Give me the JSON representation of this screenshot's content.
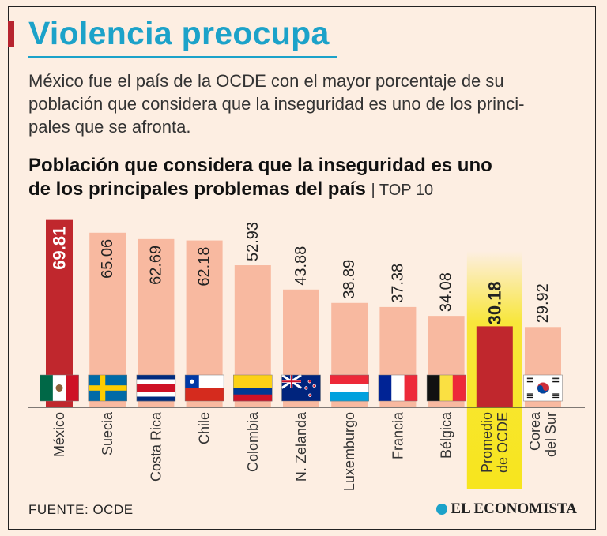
{
  "header": {
    "title": "Violencia preocupa",
    "intro_lines": [
      "México fue el país de la OCDE con el mayor porcentaje de su",
      "población que considera que la inseguridad es uno de los princi-",
      "pales que se afronta."
    ]
  },
  "chart_data": {
    "type": "bar",
    "title_lines": [
      "Población que considera que la inseguridad es uno",
      "de los principales problemas del país"
    ],
    "title_tag": "| TOP 10",
    "categories": [
      "México",
      "Suecia",
      "Costa Rica",
      "Chile",
      "Colombia",
      "N. Zelanda",
      "Luxemburgo",
      "Francia",
      "Bélgica",
      "Promedio de OCDE",
      "Corea del Sur"
    ],
    "category_lines": [
      [
        "México"
      ],
      [
        "Suecia"
      ],
      [
        "Costa Rica"
      ],
      [
        "Chile"
      ],
      [
        "Colombia"
      ],
      [
        "N. Zelanda"
      ],
      [
        "Luxemburgo"
      ],
      [
        "Francia"
      ],
      [
        "Bélgica"
      ],
      [
        "Promedio",
        "de OCDE"
      ],
      [
        "Corea",
        "del Sur"
      ]
    ],
    "values": [
      69.81,
      65.06,
      62.69,
      62.18,
      52.93,
      43.88,
      38.89,
      37.38,
      34.08,
      30.18,
      29.92
    ],
    "value_labels": [
      "69.81",
      "65.06",
      "62.69",
      "62.18",
      "52.93",
      "43.88",
      "38.89",
      "37.38",
      "34.08",
      "30.18",
      "29.92"
    ],
    "flags": [
      "mexico",
      "sweden",
      "costa-rica",
      "chile",
      "colombia",
      "new-zealand",
      "luxembourg",
      "france",
      "belgium",
      "",
      "south-korea"
    ],
    "highlight": [
      "México",
      "Promedio de OCDE"
    ],
    "ylim": [
      0,
      70
    ],
    "colors": {
      "bar": "#f8b9a0",
      "bar_highlight": "#c0272d",
      "oecd_glow": "#f7e51d",
      "label_dark": "#222222",
      "label_light": "#ffffff"
    }
  },
  "footer": {
    "source": "FUENTE:  OCDE",
    "logo": "EL ECONOMISTA"
  }
}
